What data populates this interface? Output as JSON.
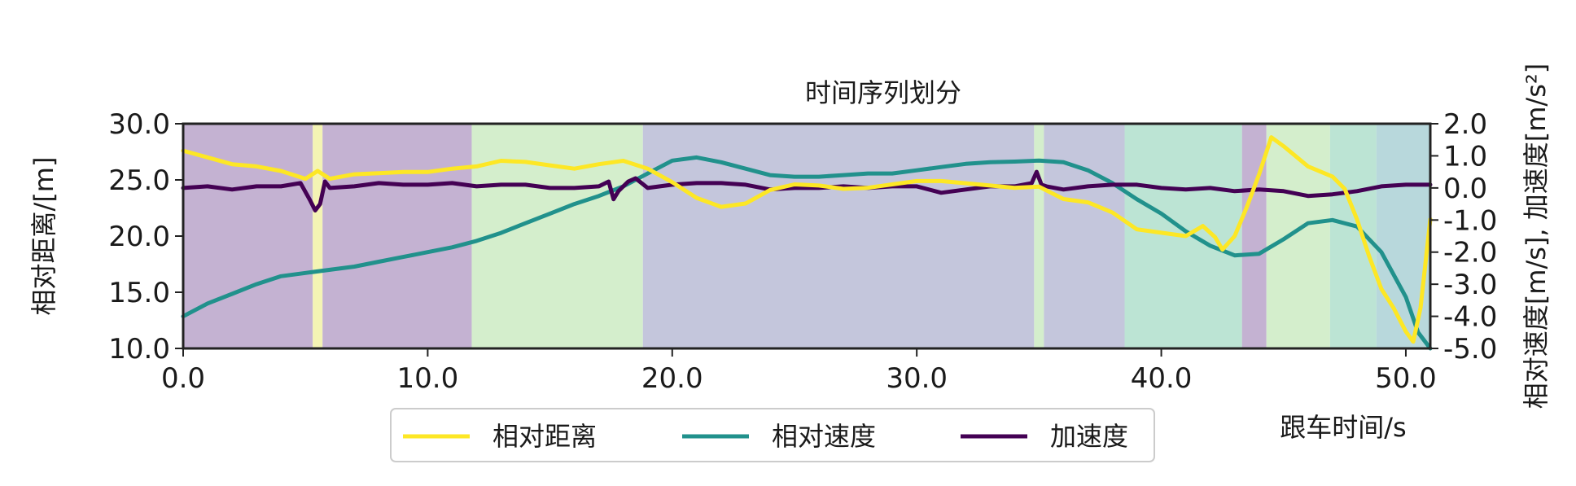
{
  "chart_data": {
    "type": "line",
    "title": "时间序列划分",
    "xlabel": "跟车时间/s",
    "ylabel_left": "相对距离/[m]",
    "ylabel_right": "相对速度[m/s], 加速度[m/s²]",
    "xlim": [
      0,
      51
    ],
    "ylim_left": [
      10,
      30
    ],
    "ylim_right": [
      -5,
      2
    ],
    "x_ticks": [
      "0.0",
      "10.0",
      "20.0",
      "30.0",
      "40.0",
      "50.0"
    ],
    "y_left_ticks": [
      "10.0",
      "15.0",
      "20.0",
      "25.0",
      "30.0"
    ],
    "y_right_ticks": [
      "-5.0",
      "-4.0",
      "-3.0",
      "-2.0",
      "-1.0",
      "0.0",
      "1.0",
      "2.0"
    ],
    "grid": false,
    "legend_position": "bottom-center",
    "segments": [
      {
        "start": 0.0,
        "end": 5.3,
        "color": "#c4b2d2"
      },
      {
        "start": 5.3,
        "end": 5.7,
        "color": "#f4f4b4"
      },
      {
        "start": 5.7,
        "end": 11.8,
        "color": "#c4b2d2"
      },
      {
        "start": 11.8,
        "end": 18.8,
        "color": "#d4eecc"
      },
      {
        "start": 18.8,
        "end": 34.8,
        "color": "#c4c6dc"
      },
      {
        "start": 34.8,
        "end": 35.2,
        "color": "#d4eecc"
      },
      {
        "start": 35.2,
        "end": 38.5,
        "color": "#c4c6dc"
      },
      {
        "start": 38.5,
        "end": 43.3,
        "color": "#bce4d4"
      },
      {
        "start": 43.3,
        "end": 44.3,
        "color": "#c4b2d2"
      },
      {
        "start": 44.3,
        "end": 46.9,
        "color": "#d4eecc"
      },
      {
        "start": 46.9,
        "end": 48.8,
        "color": "#bce4d4"
      },
      {
        "start": 48.8,
        "end": 51.0,
        "color": "#b8d8dc"
      }
    ],
    "series": [
      {
        "name": "相对距离",
        "axis": "left",
        "color": "#fde725",
        "x": [
          0,
          1,
          2,
          3,
          4,
          5,
          5.5,
          6,
          7,
          8,
          9,
          10,
          11,
          12,
          13,
          14,
          15,
          16,
          17,
          18,
          19,
          20,
          21,
          22,
          23,
          24,
          25,
          26,
          27,
          28,
          29,
          30,
          31,
          32,
          33,
          34,
          35,
          36,
          37,
          38,
          39,
          40,
          41,
          41.7,
          42.2,
          42.5,
          43,
          43.5,
          44,
          44.5,
          45,
          46,
          47,
          47.5,
          48,
          48.5,
          49,
          49.5,
          50,
          50.3,
          50.6,
          51
        ],
        "values": [
          27.6,
          27.0,
          26.4,
          26.2,
          25.8,
          25.1,
          25.8,
          25.1,
          25.5,
          25.6,
          25.7,
          25.7,
          26.0,
          26.2,
          26.7,
          26.6,
          26.3,
          26.0,
          26.4,
          26.7,
          26.0,
          24.8,
          23.4,
          22.6,
          22.9,
          24.1,
          24.6,
          24.5,
          24.2,
          24.3,
          24.6,
          24.9,
          24.9,
          24.7,
          24.5,
          24.3,
          24.4,
          23.3,
          23.0,
          22.1,
          20.6,
          20.3,
          20.0,
          20.9,
          19.9,
          18.8,
          20.0,
          22.6,
          25.5,
          28.8,
          28.0,
          26.2,
          25.3,
          24.2,
          21.5,
          18.2,
          15.3,
          13.6,
          11.5,
          10.6,
          13.6,
          21.5
        ]
      },
      {
        "name": "相对速度",
        "axis": "right",
        "color": "#21918c",
        "x": [
          0,
          1,
          2,
          3,
          4,
          5,
          6,
          7,
          8,
          9,
          10,
          11,
          12,
          13,
          14,
          15,
          16,
          17,
          18,
          19,
          20,
          21,
          22,
          23,
          24,
          25,
          26,
          27,
          28,
          29,
          30,
          31,
          32,
          33,
          34,
          35,
          36,
          37,
          38,
          39,
          40,
          41,
          42,
          43,
          44,
          45,
          46,
          47,
          48,
          49,
          50,
          50.5,
          51
        ],
        "values": [
          -4.0,
          -3.6,
          -3.3,
          -3.0,
          -2.75,
          -2.65,
          -2.55,
          -2.45,
          -2.3,
          -2.15,
          -2.0,
          -1.85,
          -1.65,
          -1.4,
          -1.1,
          -0.8,
          -0.5,
          -0.25,
          0.05,
          0.45,
          0.85,
          0.95,
          0.8,
          0.6,
          0.4,
          0.35,
          0.35,
          0.4,
          0.45,
          0.45,
          0.55,
          0.65,
          0.75,
          0.8,
          0.82,
          0.85,
          0.8,
          0.55,
          0.15,
          -0.35,
          -0.8,
          -1.35,
          -1.8,
          -2.1,
          -2.05,
          -1.6,
          -1.1,
          -1.0,
          -1.2,
          -2.0,
          -3.4,
          -4.5,
          -5.0
        ]
      },
      {
        "name": "加速度",
        "axis": "right",
        "color": "#440154",
        "x": [
          0,
          1,
          2,
          3,
          4,
          4.8,
          5.2,
          5.4,
          5.6,
          5.8,
          6,
          7,
          8,
          9,
          10,
          11,
          12,
          13,
          14,
          15,
          16,
          17,
          17.4,
          17.6,
          17.8,
          18.2,
          18.5,
          19,
          20,
          21,
          22,
          23,
          24,
          25,
          26,
          27,
          28,
          29,
          30,
          31,
          32,
          33,
          34,
          34.7,
          34.9,
          35.1,
          35.3,
          36,
          37,
          38,
          39,
          40,
          41,
          42,
          43,
          44,
          45,
          46,
          47,
          48,
          49,
          50,
          51
        ],
        "values": [
          0.0,
          0.05,
          -0.05,
          0.05,
          0.05,
          0.15,
          -0.4,
          -0.7,
          -0.5,
          0.2,
          0.0,
          0.05,
          0.15,
          0.1,
          0.1,
          0.15,
          0.05,
          0.1,
          0.1,
          0.0,
          0.0,
          0.05,
          0.2,
          -0.35,
          -0.1,
          0.2,
          0.3,
          0.0,
          0.1,
          0.15,
          0.15,
          0.1,
          -0.05,
          0.0,
          0.0,
          0.05,
          0.0,
          0.05,
          0.05,
          -0.15,
          -0.05,
          0.05,
          0.05,
          0.15,
          0.5,
          0.1,
          0.05,
          -0.05,
          0.05,
          0.1,
          0.1,
          0.0,
          -0.05,
          0.0,
          -0.1,
          -0.05,
          -0.1,
          -0.25,
          -0.2,
          -0.1,
          0.05,
          0.1,
          0.1
        ]
      }
    ]
  }
}
